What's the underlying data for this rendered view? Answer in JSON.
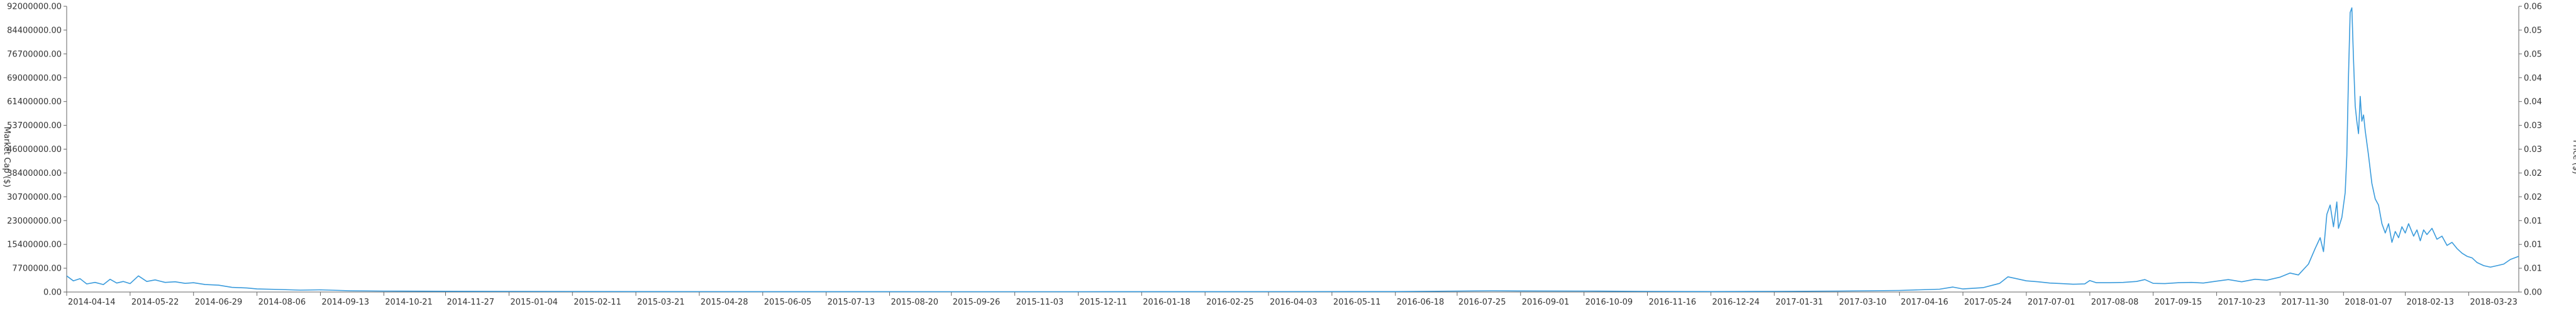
{
  "chart_data": {
    "type": "line",
    "title": "",
    "xlabel": "",
    "ylabel_left": "Market Cap ($)",
    "ylabel_right": "Price ($)",
    "ylim_left": [
      0,
      92000000
    ],
    "ylim_right": [
      0,
      0.06
    ],
    "grid": false,
    "legend": "none",
    "left_ticks": [
      "0.00",
      "7700000.00",
      "15400000.00",
      "23000000.00",
      "30700000.00",
      "38400000.00",
      "46000000.00",
      "53700000.00",
      "61400000.00",
      "69000000.00",
      "76700000.00",
      "84400000.00",
      "92000000.00"
    ],
    "right_ticks": [
      "0.00",
      "0.01",
      "0.01",
      "0.01",
      "0.02",
      "0.02",
      "0.03",
      "0.03",
      "0.04",
      "0.04",
      "0.05",
      "0.05",
      "0.06"
    ],
    "x_ticks": [
      "2014-04-14",
      "2014-05-22",
      "2014-06-29",
      "2014-08-06",
      "2014-09-13",
      "2014-10-21",
      "2014-11-27",
      "2015-01-04",
      "2015-02-11",
      "2015-03-21",
      "2015-04-28",
      "2015-06-05",
      "2015-07-13",
      "2015-08-20",
      "2015-09-26",
      "2015-11-03",
      "2015-12-11",
      "2016-01-18",
      "2016-02-25",
      "2016-04-03",
      "2016-05-11",
      "2016-06-18",
      "2016-07-25",
      "2016-09-01",
      "2016-10-09",
      "2016-11-16",
      "2016-12-24",
      "2017-01-31",
      "2017-03-10",
      "2017-04-16",
      "2017-05-24",
      "2017-07-01",
      "2017-08-08",
      "2017-09-15",
      "2017-10-23",
      "2017-11-30",
      "2018-01-07",
      "2018-02-13",
      "2018-03-23"
    ],
    "x_start": "2014-04-14",
    "x_end": "2018-04-22",
    "series": [
      {
        "name": "",
        "color": "#3a9bdc",
        "points": [
          [
            "2014-04-14",
            5200000
          ],
          [
            "2014-04-18",
            3600000
          ],
          [
            "2014-04-22",
            4300000
          ],
          [
            "2014-04-26",
            2600000
          ],
          [
            "2014-05-01",
            3100000
          ],
          [
            "2014-05-06",
            2400000
          ],
          [
            "2014-05-10",
            4100000
          ],
          [
            "2014-05-14",
            2900000
          ],
          [
            "2014-05-18",
            3400000
          ],
          [
            "2014-05-22",
            2700000
          ],
          [
            "2014-05-27",
            5200000
          ],
          [
            "2014-06-01",
            3400000
          ],
          [
            "2014-06-06",
            3900000
          ],
          [
            "2014-06-12",
            3100000
          ],
          [
            "2014-06-18",
            3300000
          ],
          [
            "2014-06-24",
            2800000
          ],
          [
            "2014-06-29",
            3000000
          ],
          [
            "2014-07-06",
            2400000
          ],
          [
            "2014-07-14",
            2200000
          ],
          [
            "2014-07-22",
            1500000
          ],
          [
            "2014-07-31",
            1300000
          ],
          [
            "2014-08-06",
            1000000
          ],
          [
            "2014-08-20",
            800000
          ],
          [
            "2014-09-01",
            600000
          ],
          [
            "2014-09-13",
            700000
          ],
          [
            "2014-10-01",
            400000
          ],
          [
            "2014-10-21",
            300000
          ],
          [
            "2014-11-27",
            250000
          ],
          [
            "2015-01-04",
            200000
          ],
          [
            "2015-03-21",
            150000
          ],
          [
            "2015-06-05",
            120000
          ],
          [
            "2015-09-26",
            100000
          ],
          [
            "2015-12-11",
            110000
          ],
          [
            "2016-03-01",
            120000
          ],
          [
            "2016-06-18",
            150000
          ],
          [
            "2016-07-25",
            300000
          ],
          [
            "2016-08-15",
            400000
          ],
          [
            "2016-09-01",
            350000
          ],
          [
            "2016-10-09",
            300000
          ],
          [
            "2016-11-16",
            200000
          ],
          [
            "2016-12-24",
            150000
          ],
          [
            "2017-01-31",
            200000
          ],
          [
            "2017-03-10",
            300000
          ],
          [
            "2017-04-16",
            500000
          ],
          [
            "2017-05-10",
            900000
          ],
          [
            "2017-05-18",
            1600000
          ],
          [
            "2017-05-24",
            1000000
          ],
          [
            "2017-06-05",
            1400000
          ],
          [
            "2017-06-15",
            2800000
          ],
          [
            "2017-06-20",
            4900000
          ],
          [
            "2017-06-25",
            4300000
          ],
          [
            "2017-07-01",
            3600000
          ],
          [
            "2017-07-08",
            3300000
          ],
          [
            "2017-07-15",
            2900000
          ],
          [
            "2017-07-22",
            2700000
          ],
          [
            "2017-07-29",
            2500000
          ],
          [
            "2017-08-05",
            2600000
          ],
          [
            "2017-08-08",
            3700000
          ],
          [
            "2017-08-12",
            3000000
          ],
          [
            "2017-08-20",
            3000000
          ],
          [
            "2017-08-28",
            3100000
          ],
          [
            "2017-09-05",
            3400000
          ],
          [
            "2017-09-10",
            4000000
          ],
          [
            "2017-09-15",
            2800000
          ],
          [
            "2017-09-22",
            2700000
          ],
          [
            "2017-09-30",
            3000000
          ],
          [
            "2017-10-08",
            3100000
          ],
          [
            "2017-10-15",
            2900000
          ],
          [
            "2017-10-23",
            3500000
          ],
          [
            "2017-10-30",
            4000000
          ],
          [
            "2017-11-07",
            3300000
          ],
          [
            "2017-11-15",
            4100000
          ],
          [
            "2017-11-22",
            3800000
          ],
          [
            "2017-11-30",
            4800000
          ],
          [
            "2017-12-06",
            6100000
          ],
          [
            "2017-12-11",
            5500000
          ],
          [
            "2017-12-17",
            9000000
          ],
          [
            "2017-12-21",
            14000000
          ],
          [
            "2017-12-24",
            17500000
          ],
          [
            "2017-12-26",
            13000000
          ],
          [
            "2017-12-28",
            25000000
          ],
          [
            "2017-12-30",
            28000000
          ],
          [
            "2018-01-01",
            21000000
          ],
          [
            "2018-01-03",
            29000000
          ],
          [
            "2018-01-04",
            20500000
          ],
          [
            "2018-01-06",
            24000000
          ],
          [
            "2018-01-08",
            32000000
          ],
          [
            "2018-01-09",
            44000000
          ],
          [
            "2018-01-10",
            70000000
          ],
          [
            "2018-01-11",
            90000000
          ],
          [
            "2018-01-12",
            91500000
          ],
          [
            "2018-01-13",
            75000000
          ],
          [
            "2018-01-14",
            60000000
          ],
          [
            "2018-01-15",
            55000000
          ],
          [
            "2018-01-16",
            51000000
          ],
          [
            "2018-01-17",
            63000000
          ],
          [
            "2018-01-18",
            55000000
          ],
          [
            "2018-01-19",
            57000000
          ],
          [
            "2018-01-20",
            52000000
          ],
          [
            "2018-01-22",
            44000000
          ],
          [
            "2018-01-24",
            35000000
          ],
          [
            "2018-01-26",
            30000000
          ],
          [
            "2018-01-28",
            28000000
          ],
          [
            "2018-01-30",
            22000000
          ],
          [
            "2018-02-01",
            19000000
          ],
          [
            "2018-02-03",
            22000000
          ],
          [
            "2018-02-05",
            16000000
          ],
          [
            "2018-02-07",
            19500000
          ],
          [
            "2018-02-09",
            17500000
          ],
          [
            "2018-02-11",
            21000000
          ],
          [
            "2018-02-13",
            19000000
          ],
          [
            "2018-02-15",
            22000000
          ],
          [
            "2018-02-18",
            18000000
          ],
          [
            "2018-02-20",
            20000000
          ],
          [
            "2018-02-22",
            16500000
          ],
          [
            "2018-02-24",
            20000000
          ],
          [
            "2018-02-26",
            18500000
          ],
          [
            "2018-03-01",
            20500000
          ],
          [
            "2018-03-04",
            17000000
          ],
          [
            "2018-03-07",
            18000000
          ],
          [
            "2018-03-10",
            15000000
          ],
          [
            "2018-03-13",
            16000000
          ],
          [
            "2018-03-16",
            14000000
          ],
          [
            "2018-03-19",
            12500000
          ],
          [
            "2018-03-22",
            11500000
          ],
          [
            "2018-03-25",
            11000000
          ],
          [
            "2018-03-28",
            9500000
          ],
          [
            "2018-04-01",
            8500000
          ],
          [
            "2018-04-05",
            8000000
          ],
          [
            "2018-04-09",
            8500000
          ],
          [
            "2018-04-13",
            9000000
          ],
          [
            "2018-04-17",
            10500000
          ],
          [
            "2018-04-22",
            11500000
          ]
        ]
      }
    ]
  }
}
